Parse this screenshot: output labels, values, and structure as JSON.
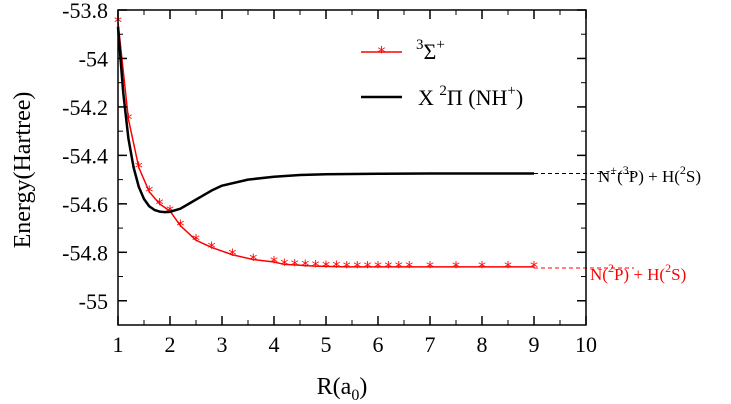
{
  "chart_data": {
    "type": "line",
    "xlabel": {
      "main": "R(a",
      "sub": "0",
      "end": ")"
    },
    "ylabel": "Energy(Hartree)",
    "xlim": [
      1,
      10
    ],
    "ylim": [
      -55.1,
      -53.8
    ],
    "xticks": [
      1,
      2,
      3,
      4,
      5,
      6,
      7,
      8,
      9,
      10
    ],
    "yticks": [
      -55,
      -54.8,
      -54.6,
      -54.4,
      -54.2,
      -54,
      -53.8
    ],
    "grid": false,
    "legend_position": "top-right",
    "colors": {
      "sigma": "#ff0000",
      "pi": "#000000",
      "axes": "#000000"
    },
    "series": [
      {
        "id": "sigma",
        "name": {
          "pre": "3",
          "main": "Σ",
          "sup": "+"
        },
        "marker": "star",
        "x": [
          1.0,
          1.2,
          1.4,
          1.6,
          1.8,
          2.0,
          2.2,
          2.5,
          2.8,
          3.2,
          3.6,
          4.0,
          4.2,
          4.4,
          4.6,
          4.8,
          5.0,
          5.2,
          5.4,
          5.6,
          5.8,
          6.0,
          6.2,
          6.4,
          6.6,
          7.0,
          7.5,
          8.0,
          8.5,
          9.0
        ],
        "y": [
          -53.85,
          -54.25,
          -54.45,
          -54.55,
          -54.6,
          -54.63,
          -54.69,
          -54.75,
          -54.78,
          -54.81,
          -54.83,
          -54.84,
          -54.85,
          -54.852,
          -54.855,
          -54.857,
          -54.858,
          -54.859,
          -54.86,
          -54.86,
          -54.86,
          -54.86,
          -54.86,
          -54.86,
          -54.86,
          -54.86,
          -54.86,
          -54.86,
          -54.86,
          -54.86
        ]
      },
      {
        "id": "pi",
        "name": {
          "main": "X ",
          "sup1": "2",
          "main2": "Π (NH",
          "sup2": "+",
          "end": ")"
        },
        "marker": "none",
        "x": [
          1.0,
          1.1,
          1.2,
          1.3,
          1.4,
          1.5,
          1.6,
          1.7,
          1.8,
          1.9,
          2.0,
          2.2,
          2.4,
          2.6,
          2.8,
          3.0,
          3.5,
          4.0,
          4.5,
          5.0,
          6.0,
          7.0,
          8.0,
          9.0
        ],
        "y": [
          -53.87,
          -54.14,
          -54.33,
          -54.45,
          -54.53,
          -54.58,
          -54.61,
          -54.625,
          -54.632,
          -54.634,
          -54.633,
          -54.62,
          -54.595,
          -54.57,
          -54.545,
          -54.525,
          -54.5,
          -54.488,
          -54.481,
          -54.478,
          -54.476,
          -54.475,
          -54.475,
          -54.475
        ]
      }
    ],
    "asymptotes": [
      {
        "series": "pi",
        "y": -54.475,
        "label": {
          "a": "N",
          "b": "+",
          "c": "(",
          "d": "3",
          "e": "P) + H(",
          "f": "2",
          "g": "S)"
        }
      },
      {
        "series": "sigma",
        "y": -54.865,
        "label": {
          "a": "N(",
          "b": "2",
          "c": "P) + H(",
          "d": "2",
          "e": "S)"
        }
      }
    ]
  }
}
